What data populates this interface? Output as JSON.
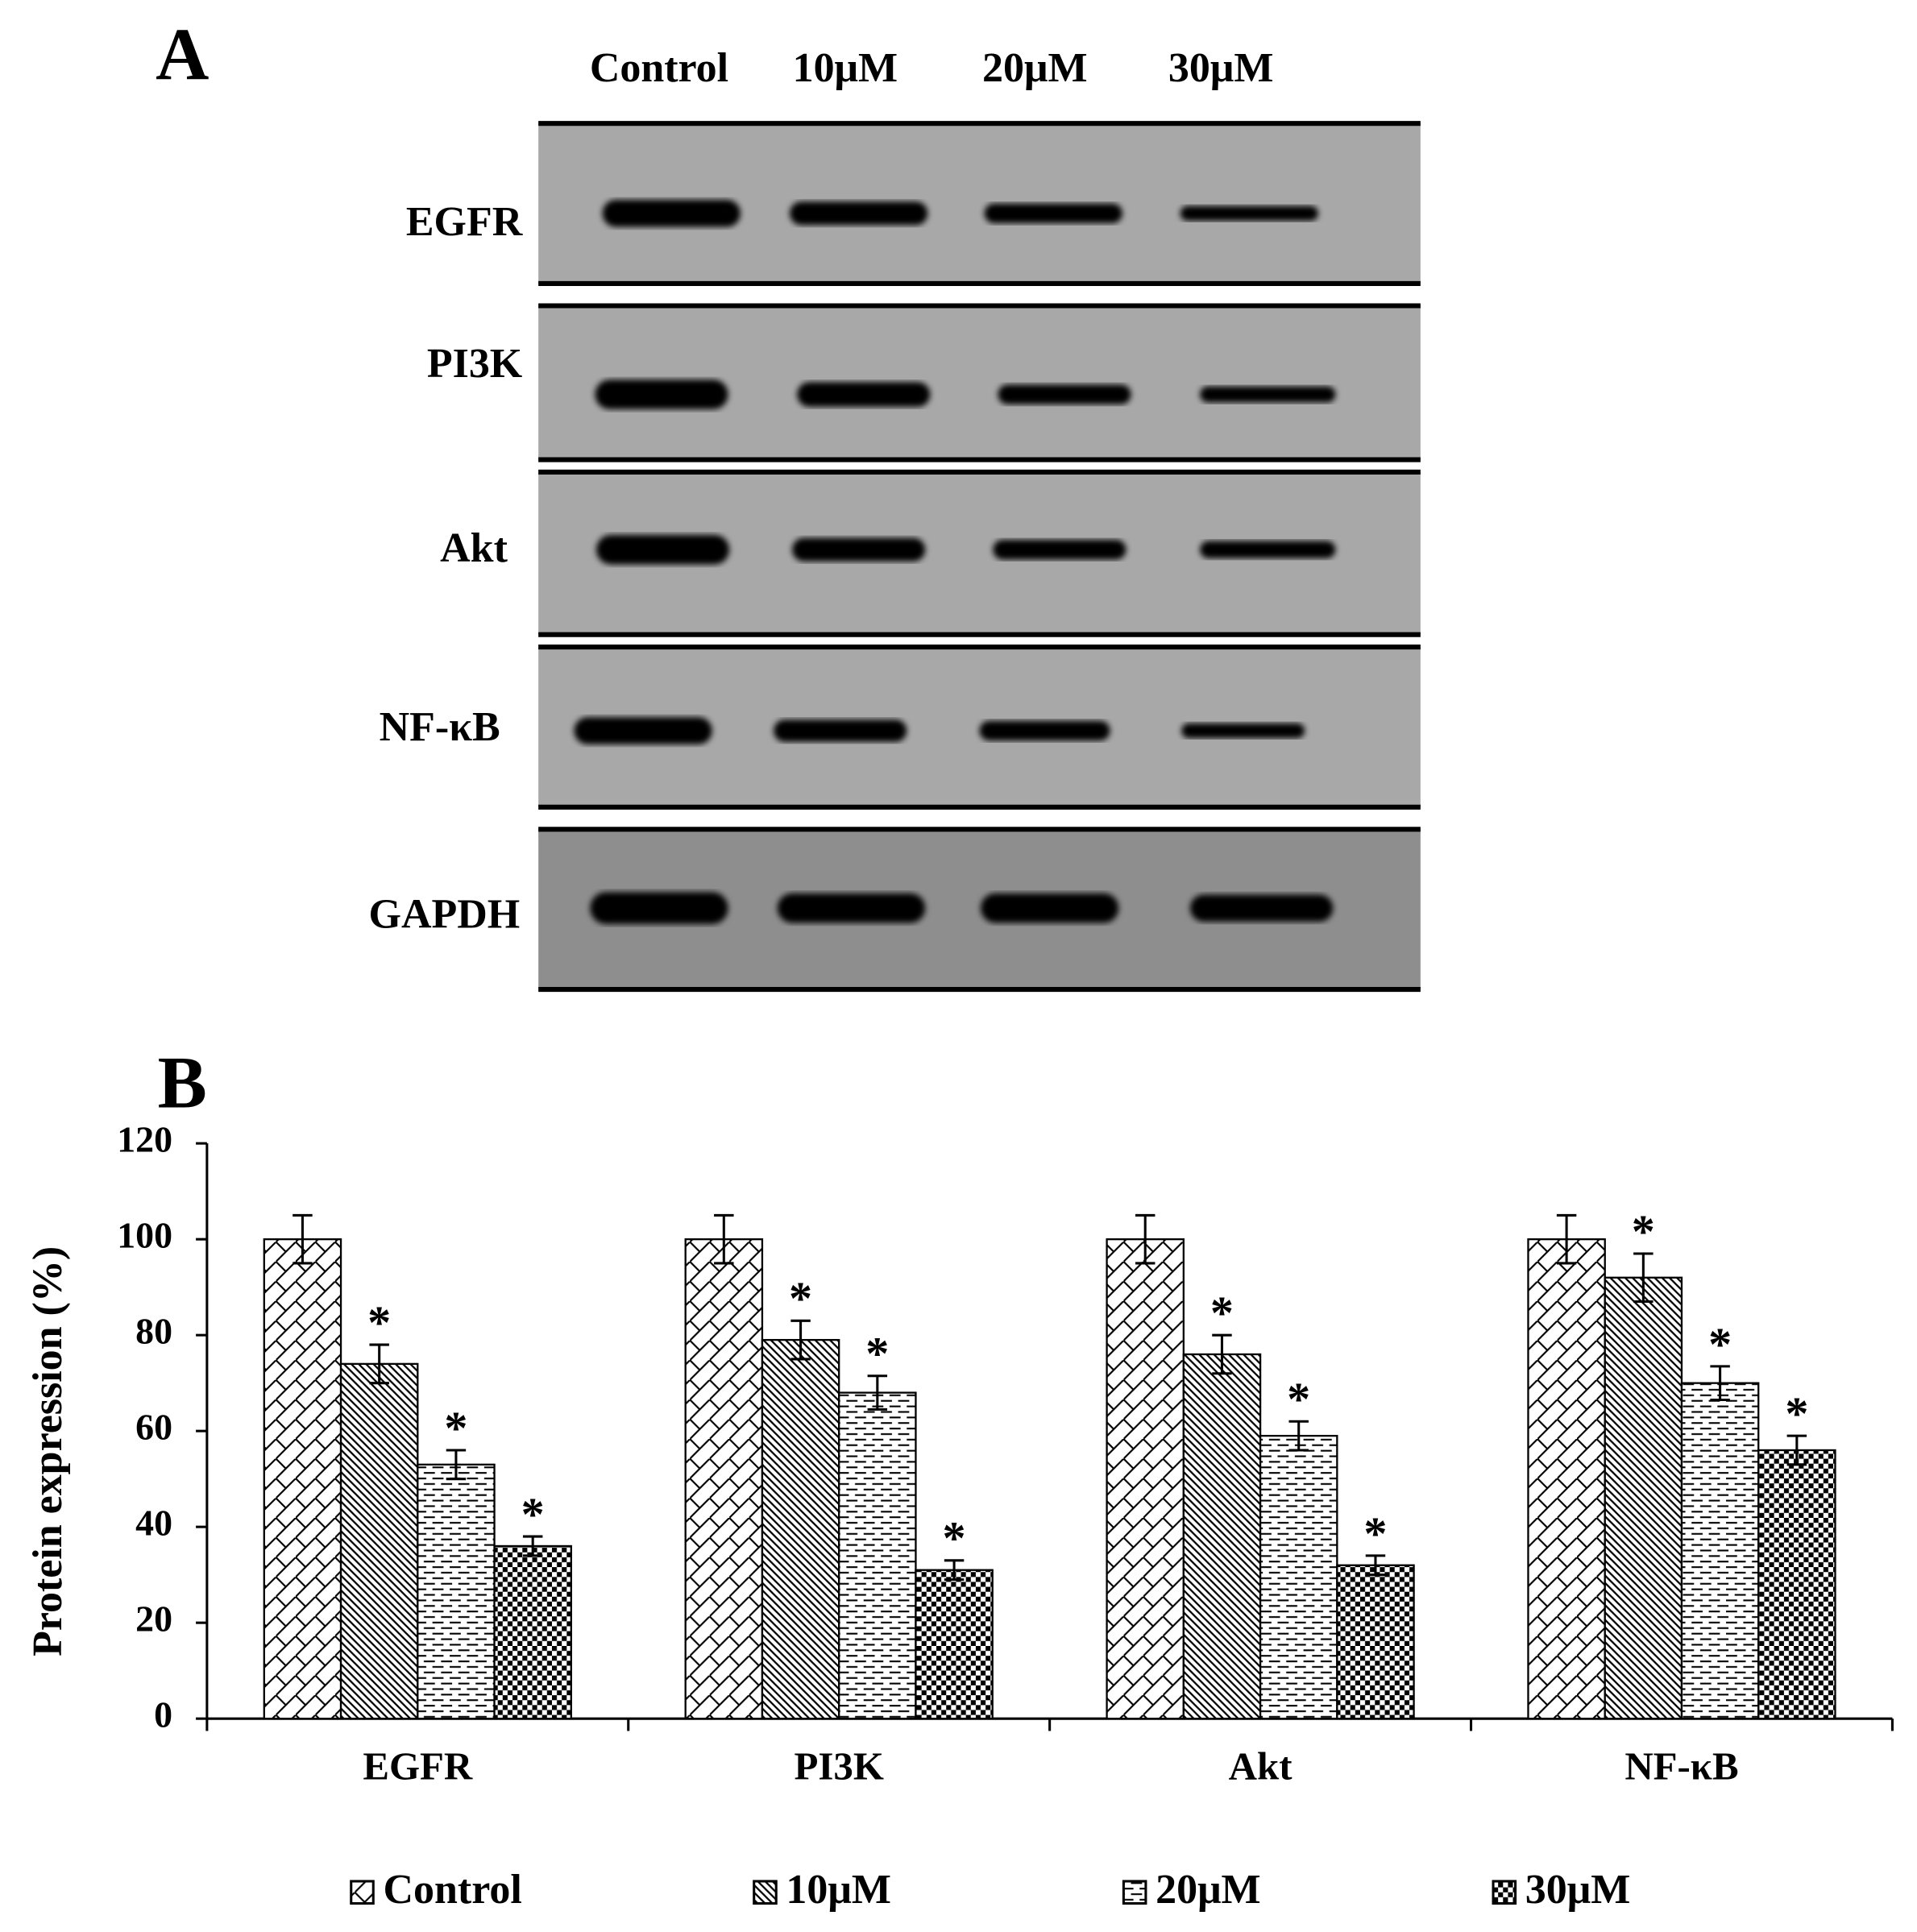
{
  "blot": {
    "panel_label": "A",
    "lanes": [
      "Control",
      "10μM",
      "20μM",
      "30μM"
    ],
    "rows": [
      "EGFR",
      "PI3K",
      "Akt",
      "NF-κB",
      "GAPDH"
    ]
  },
  "chart_data": {
    "type": "bar",
    "panel_label": "B",
    "y_label": "Protein expression (%)",
    "categories": [
      "EGFR",
      "PI3K",
      "Akt",
      "NF-κB"
    ],
    "series": [
      {
        "name": "Control",
        "pattern": "crosshatch",
        "color": "#000000",
        "values": [
          100,
          100,
          100,
          100
        ],
        "errors": [
          5,
          5,
          5,
          5
        ]
      },
      {
        "name": "10μM",
        "pattern": "diagonal",
        "color": "#000000",
        "values": [
          74,
          79,
          76,
          92
        ],
        "errors": [
          4,
          4,
          4,
          5
        ],
        "markers": [
          "*",
          "*",
          "*",
          "*"
        ]
      },
      {
        "name": "20μM",
        "pattern": "dashes",
        "color": "#000000",
        "values": [
          53,
          68,
          59,
          70
        ],
        "errors": [
          3,
          3.5,
          3,
          3.5
        ],
        "markers": [
          "*",
          "*",
          "*",
          "*"
        ]
      },
      {
        "name": "30μM",
        "pattern": "checker",
        "color": "#000000",
        "values": [
          36,
          31,
          32,
          56
        ],
        "errors": [
          2,
          2,
          2,
          3
        ],
        "markers": [
          "*",
          "*",
          "*",
          "*"
        ]
      }
    ],
    "ylim": [
      0,
      120
    ],
    "yticks": [
      0,
      20,
      40,
      60,
      80,
      100,
      120
    ],
    "legend": "bottom"
  }
}
